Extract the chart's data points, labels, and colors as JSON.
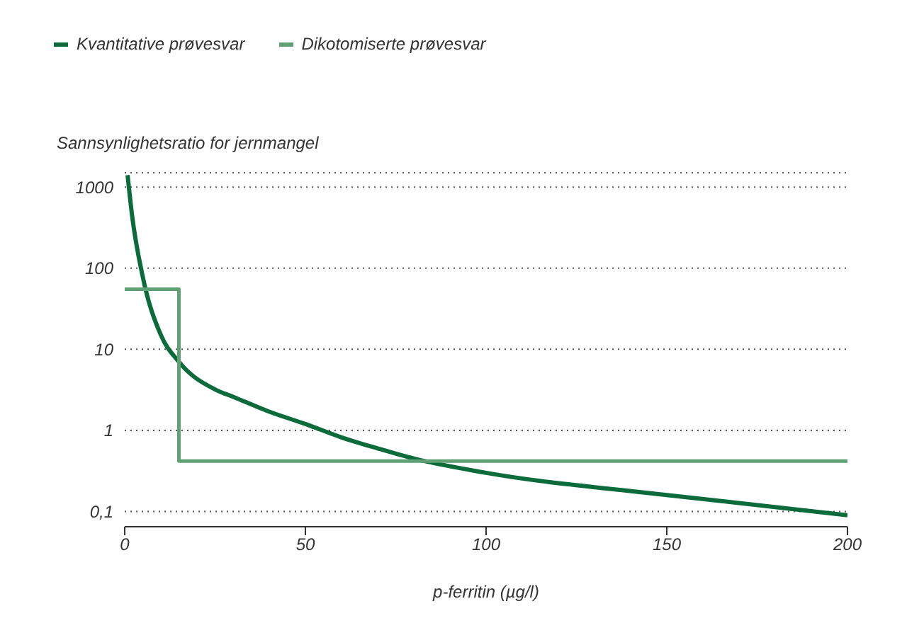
{
  "chart_data": {
    "type": "line",
    "ylabel": "Sannsynlighetsratio for jernmangel",
    "xlabel": "p-ferritin (µg/l)",
    "xlim": [
      0,
      200
    ],
    "xticks": [
      0,
      50,
      100,
      150,
      200
    ],
    "ylim": [
      0.065,
      1500
    ],
    "yticks": [
      {
        "value": 0.1,
        "label": "0,1"
      },
      1,
      10,
      100,
      1000
    ],
    "log": "y",
    "grid": "y",
    "legend": "top left",
    "marker": "none",
    "series": [
      {
        "name": "Kvantitative prøvesvar",
        "color": "#0b6b3a",
        "x": [
          0.8,
          2,
          5,
          10,
          15,
          25,
          30,
          40,
          50,
          60,
          70,
          80,
          100,
          150,
          200
        ],
        "values": [
          1400,
          460,
          78,
          15,
          7,
          3.2,
          2.6,
          1.7,
          1.2,
          0.82,
          0.6,
          0.45,
          0.3,
          0.16,
          0.09
        ]
      },
      {
        "name": "Dikotomiserte prøvesvar",
        "color": "#5fa074",
        "x": [
          0,
          15,
          15,
          200
        ],
        "values": [
          55,
          55,
          0.42,
          0.42
        ]
      }
    ]
  }
}
